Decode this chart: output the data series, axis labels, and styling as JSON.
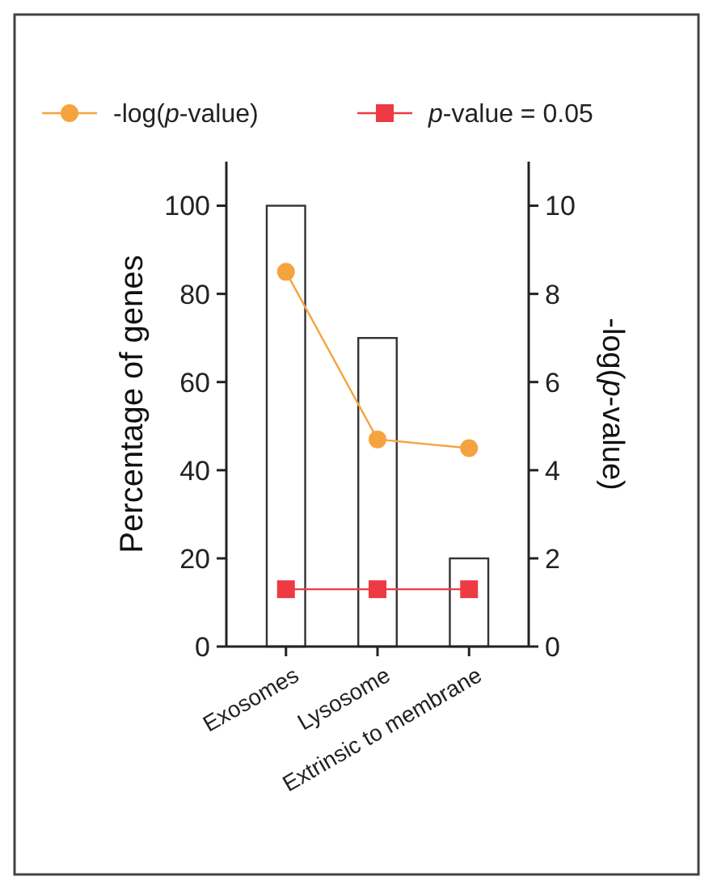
{
  "chart_data": {
    "type": "bar",
    "categories": [
      "Exosomes",
      "Lysosome",
      "Extrinsic to membrane"
    ],
    "series": [
      {
        "color": "#ffffff",
        "values": [
          100,
          70,
          20
        ]
      },
      {
        "type": "line",
        "name": "-log(p-value)",
        "color": "#f5a33f",
        "axis": "y2",
        "marker": "circle",
        "values": [
          8.5,
          4.7,
          4.5
        ]
      },
      {
        "type": "line",
        "name": "p-value = 0.05",
        "color": "#ee3a43",
        "axis": "y2",
        "marker": "square",
        "values": [
          1.3,
          1.3,
          1.3
        ]
      }
    ],
    "ylabel": "Percentage of genes",
    "y2label": "-log(p-value)",
    "ylim": [
      0,
      110
    ],
    "yticks": [
      0,
      20,
      40,
      60,
      80,
      100
    ],
    "y2lim": [
      0,
      11
    ],
    "y2ticks": [
      0,
      2,
      4,
      6,
      8,
      10
    ],
    "legend": "top"
  }
}
